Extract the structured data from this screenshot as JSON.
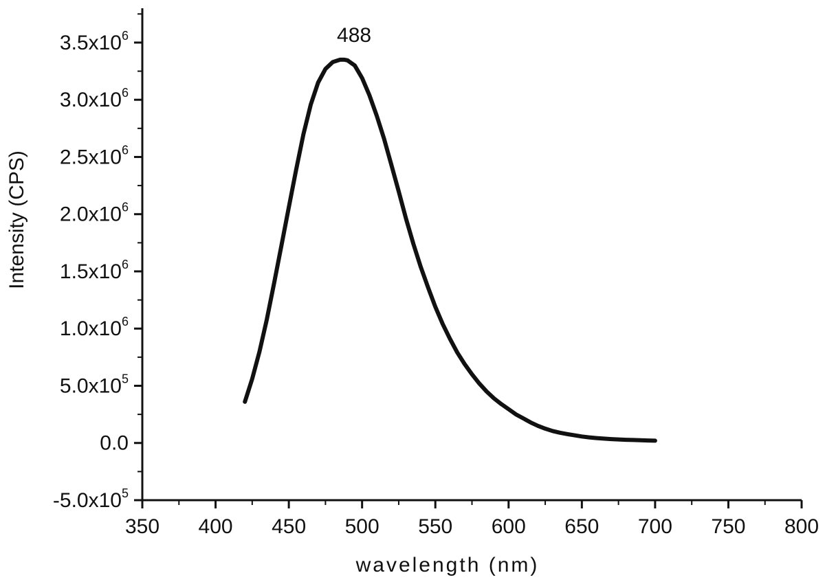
{
  "chart_data": {
    "type": "line",
    "title": "",
    "xlabel": "wavelength (nm)",
    "ylabel": "Intensity (CPS)",
    "xlim": [
      350,
      800
    ],
    "ylim": [
      -500000,
      3800000
    ],
    "x_ticks": [
      350,
      400,
      450,
      500,
      550,
      600,
      650,
      700,
      750,
      800
    ],
    "x_tick_labels": [
      "350",
      "400",
      "450",
      "500",
      "550",
      "600",
      "650",
      "700",
      "750",
      "800"
    ],
    "y_ticks": [
      -500000,
      0,
      500000,
      1000000,
      1500000,
      2000000,
      2500000,
      3000000,
      3500000
    ],
    "y_tick_labels": [
      {
        "mantissa": "-5.0x10",
        "exp": "5"
      },
      {
        "mantissa": "0.0",
        "exp": ""
      },
      {
        "mantissa": "5.0x10",
        "exp": "5"
      },
      {
        "mantissa": "1.0x10",
        "exp": "6"
      },
      {
        "mantissa": "1.5x10",
        "exp": "6"
      },
      {
        "mantissa": "2.0x10",
        "exp": "6"
      },
      {
        "mantissa": "2.5x10",
        "exp": "6"
      },
      {
        "mantissa": "3.0x10",
        "exp": "6"
      },
      {
        "mantissa": "3.5x10",
        "exp": "6"
      }
    ],
    "grid": false,
    "legend": "none",
    "line_color": "#111111",
    "annotations": [
      {
        "text": "488",
        "x": 488,
        "y": 3350000
      }
    ],
    "series": [
      {
        "x": [
          420,
          425,
          430,
          435,
          440,
          445,
          450,
          455,
          460,
          465,
          470,
          475,
          480,
          485,
          488,
          490,
          495,
          500,
          505,
          510,
          515,
          520,
          525,
          530,
          535,
          540,
          545,
          550,
          555,
          560,
          565,
          570,
          575,
          580,
          585,
          590,
          595,
          600,
          605,
          610,
          615,
          620,
          625,
          630,
          635,
          640,
          645,
          650,
          655,
          660,
          665,
          670,
          675,
          680,
          685,
          690,
          695,
          700
        ],
        "y": [
          360000,
          560000,
          800000,
          1080000,
          1400000,
          1730000,
          2060000,
          2390000,
          2700000,
          2960000,
          3150000,
          3270000,
          3330000,
          3350000,
          3350000,
          3345000,
          3300000,
          3190000,
          3040000,
          2860000,
          2660000,
          2430000,
          2200000,
          1960000,
          1740000,
          1540000,
          1360000,
          1190000,
          1040000,
          910000,
          790000,
          690000,
          600000,
          520000,
          450000,
          390000,
          340000,
          295000,
          250000,
          215000,
          180000,
          150000,
          125000,
          105000,
          90000,
          78000,
          67000,
          57000,
          49000,
          43000,
          38000,
          34000,
          31000,
          28000,
          26000,
          24000,
          22000,
          20000
        ]
      }
    ]
  }
}
